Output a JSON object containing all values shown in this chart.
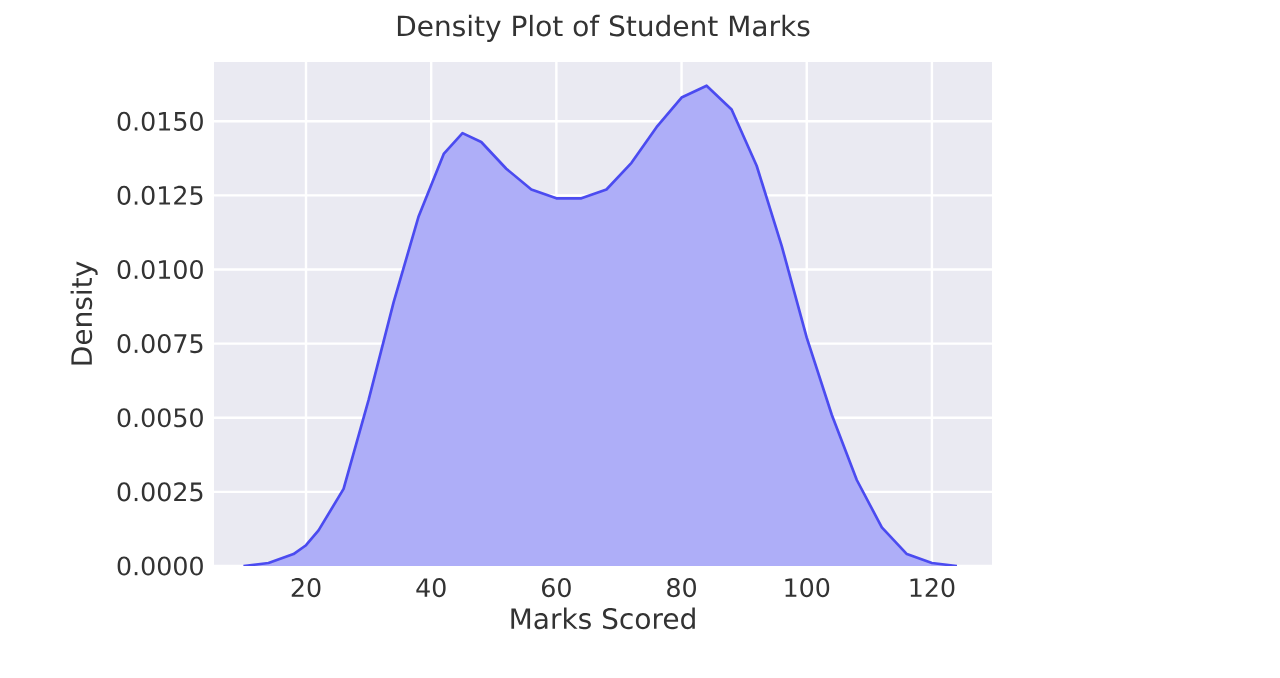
{
  "chart_data": {
    "type": "area",
    "title": "Density Plot of Student Marks",
    "xlabel": "Marks Scored",
    "ylabel": "Density",
    "x": [
      10,
      14,
      18,
      20,
      22,
      26,
      30,
      34,
      38,
      42,
      45,
      48,
      52,
      56,
      60,
      64,
      68,
      72,
      76,
      80,
      84,
      88,
      92,
      96,
      100,
      104,
      108,
      112,
      116,
      120,
      124
    ],
    "series": [
      {
        "color": "#4b4bf0",
        "values": [
          0,
          0.0001,
          0.0004,
          0.0007,
          0.0012,
          0.0026,
          0.0056,
          0.0089,
          0.0118,
          0.0139,
          0.0146,
          0.0143,
          0.0134,
          0.0127,
          0.0124,
          0.0124,
          0.0127,
          0.0136,
          0.0148,
          0.0158,
          0.0162,
          0.0154,
          0.0135,
          0.0108,
          0.0077,
          0.0051,
          0.0029,
          0.0013,
          0.0004,
          0.0001,
          0
        ]
      }
    ],
    "xlim": [
      5.3,
      129.6
    ],
    "ylim": [
      0,
      0.017
    ],
    "xticks": [
      20,
      40,
      60,
      80,
      100,
      120
    ],
    "yticks": [
      {
        "value": 0,
        "label": "0.0000"
      },
      {
        "value": 0.0025,
        "label": "0.0025"
      },
      {
        "value": 0.005,
        "label": "0.0050"
      },
      {
        "value": 0.0075,
        "label": "0.0075"
      },
      {
        "value": 0.01,
        "label": "0.0100"
      },
      {
        "value": 0.0125,
        "label": "0.0125"
      },
      {
        "value": 0.015,
        "label": "0.0150"
      }
    ],
    "grid": true
  }
}
